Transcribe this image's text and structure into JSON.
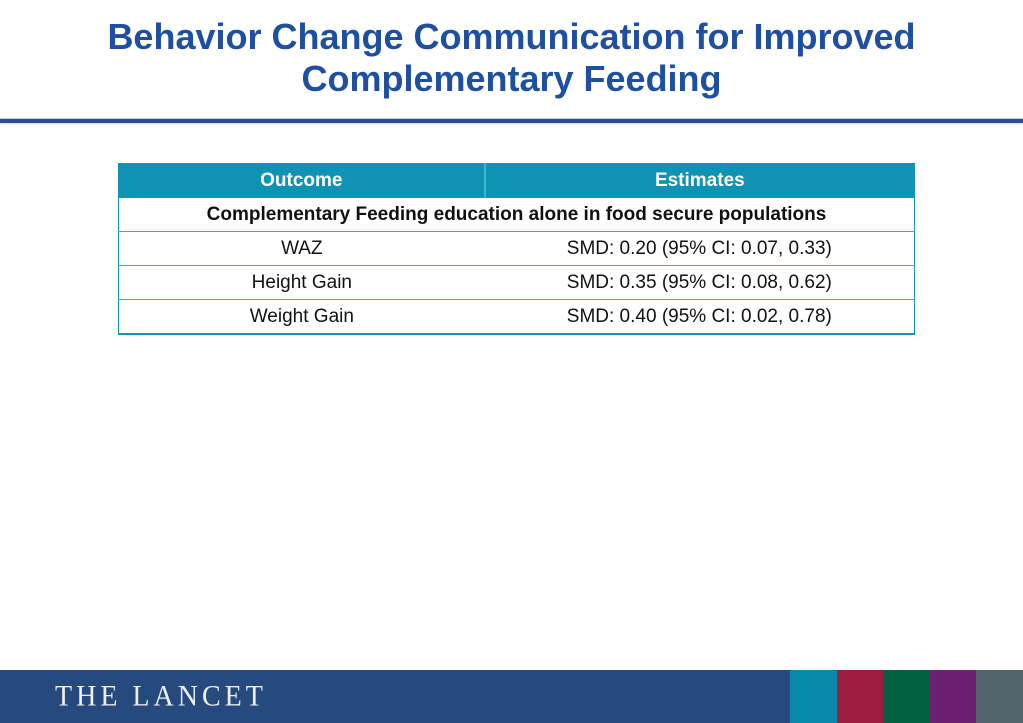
{
  "slide": {
    "title_lines": [
      "Behavior Change Communication for Improved",
      "Complementary Feeding"
    ]
  },
  "table": {
    "columns": [
      "Outcome",
      "Estimates"
    ],
    "section_header": "Complementary Feeding education alone in food secure populations",
    "rows": [
      {
        "outcome": "WAZ",
        "estimate": "SMD: 0.20 (95% CI: 0.07, 0.33)"
      },
      {
        "outcome": "Height Gain",
        "estimate": "SMD: 0.35 (95% CI: 0.08, 0.62)"
      },
      {
        "outcome": "Weight Gain",
        "estimate": "SMD: 0.40 (95% CI: 0.02, 0.78)"
      }
    ]
  },
  "footer": {
    "logo_text": "THE LANCET",
    "bar_color": "#274a7e",
    "color_blocks": [
      {
        "name": "teal",
        "color": "#0789ab"
      },
      {
        "name": "crimson",
        "color": "#9e1d3f"
      },
      {
        "name": "green",
        "color": "#026140"
      },
      {
        "name": "purple",
        "color": "#6c2170"
      },
      {
        "name": "slate",
        "color": "#55656e"
      }
    ]
  },
  "colors": {
    "title_text": "#1f4fa0",
    "title_rule": "#2b4d8f",
    "table_header_bg": "#0e93b4",
    "table_border": "#1595b5"
  }
}
